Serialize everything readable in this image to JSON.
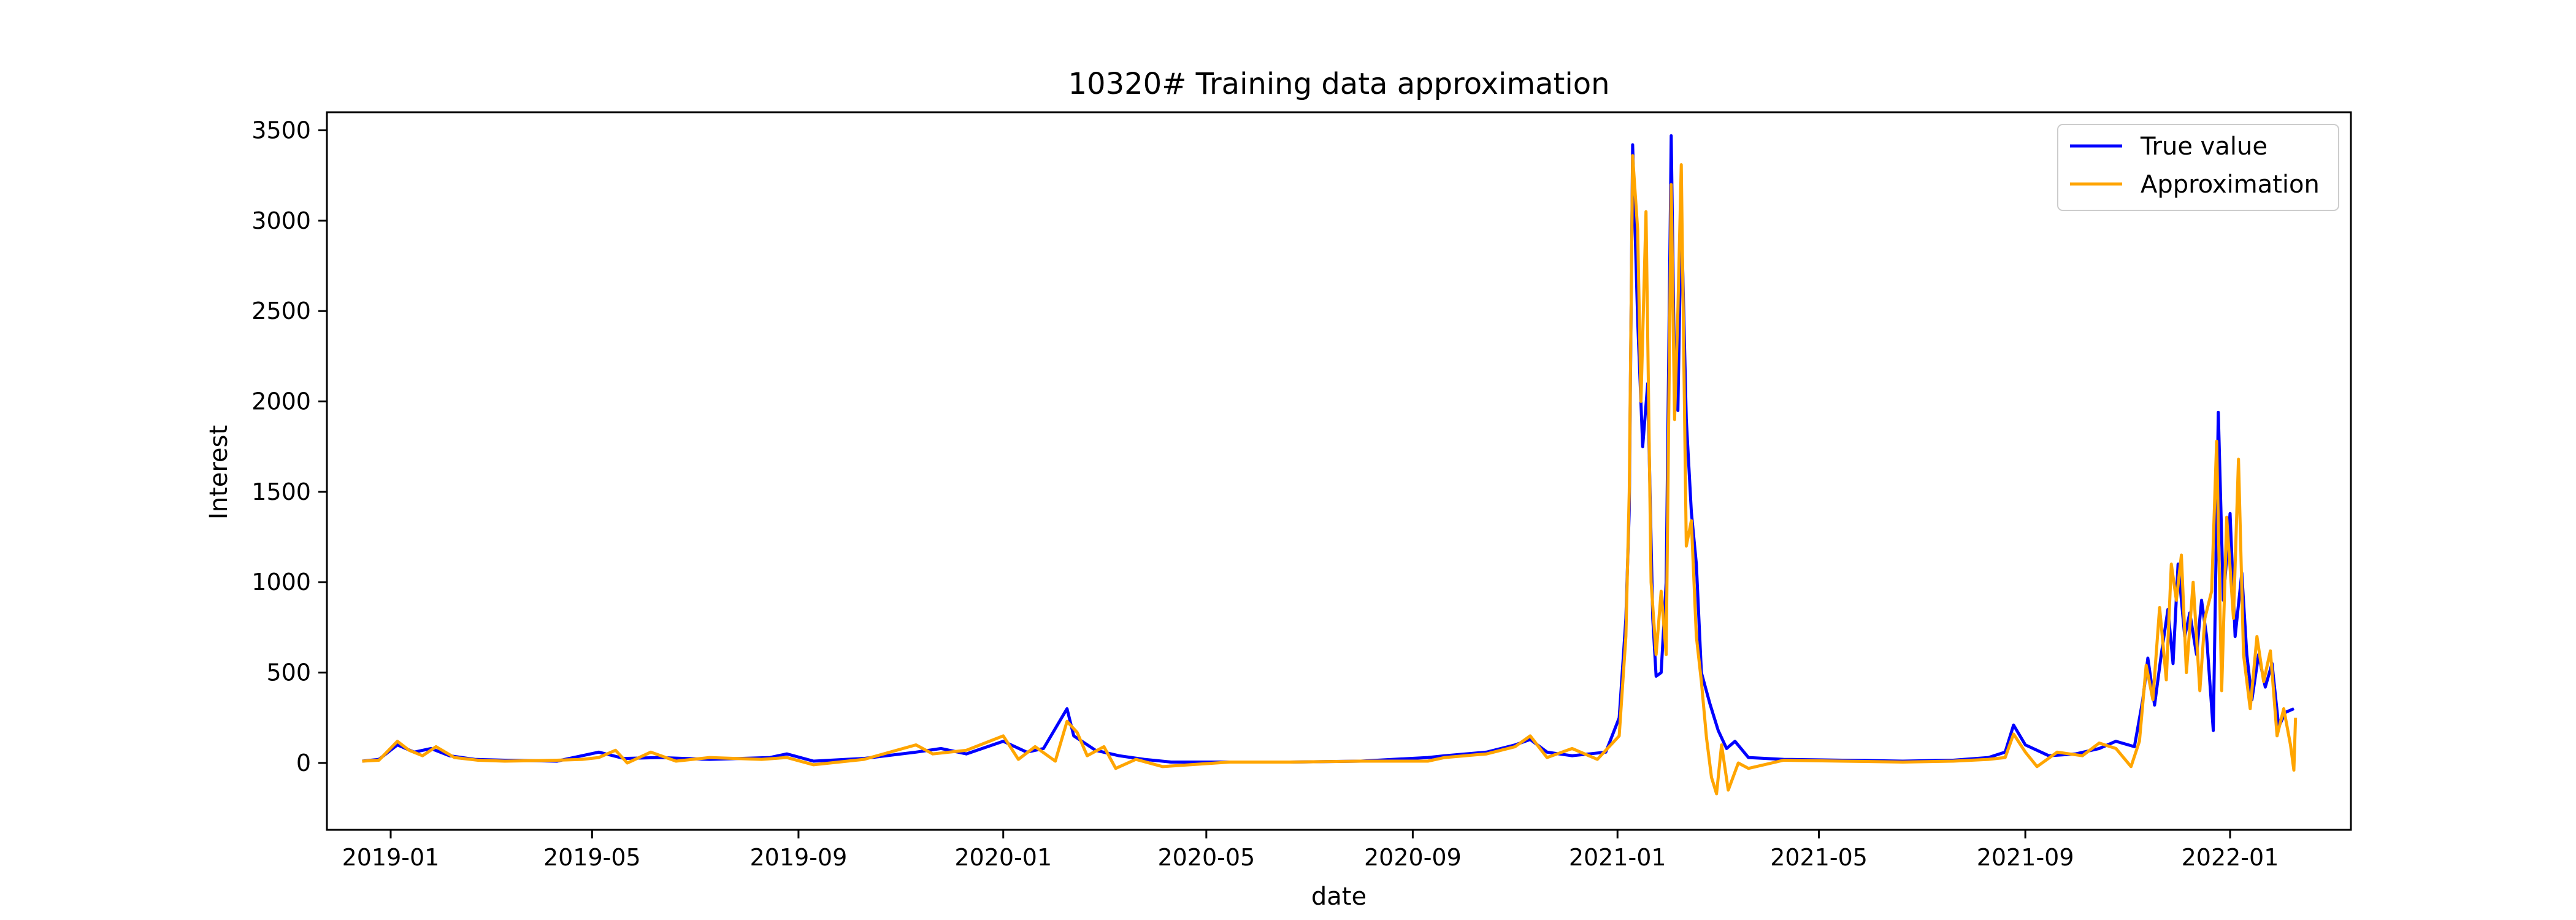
{
  "chart_data": {
    "type": "line",
    "title": "10320# Training data approximation",
    "xlabel": "date",
    "ylabel": "Interest",
    "xlim": [
      "2018-11-24",
      "2022-03-14"
    ],
    "ylim": [
      -370,
      3600
    ],
    "x_ticks": [
      "2019-01",
      "2019-05",
      "2019-09",
      "2020-01",
      "2020-05",
      "2020-09",
      "2021-01",
      "2021-05",
      "2021-09",
      "2022-01"
    ],
    "y_ticks": [
      0,
      500,
      1000,
      1500,
      2000,
      2500,
      3000,
      3500
    ],
    "legend_position": "top-right",
    "grid": false,
    "series": [
      {
        "name": "True value",
        "color": "#0000ff",
        "points": [
          [
            "2018-12-15",
            10
          ],
          [
            "2018-12-25",
            20
          ],
          [
            "2019-01-05",
            100
          ],
          [
            "2019-01-15",
            60
          ],
          [
            "2019-01-25",
            80
          ],
          [
            "2019-02-05",
            40
          ],
          [
            "2019-02-20",
            20
          ],
          [
            "2019-03-10",
            15
          ],
          [
            "2019-04-10",
            10
          ],
          [
            "2019-04-25",
            40
          ],
          [
            "2019-05-05",
            60
          ],
          [
            "2019-05-20",
            25
          ],
          [
            "2019-06-10",
            30
          ],
          [
            "2019-07-10",
            20
          ],
          [
            "2019-08-15",
            30
          ],
          [
            "2019-08-25",
            50
          ],
          [
            "2019-09-10",
            10
          ],
          [
            "2019-10-10",
            25
          ],
          [
            "2019-11-10",
            60
          ],
          [
            "2019-11-25",
            80
          ],
          [
            "2019-12-10",
            50
          ],
          [
            "2020-01-01",
            120
          ],
          [
            "2020-01-15",
            60
          ],
          [
            "2020-01-25",
            80
          ],
          [
            "2020-02-08",
            300
          ],
          [
            "2020-02-12",
            150
          ],
          [
            "2020-02-25",
            70
          ],
          [
            "2020-03-10",
            40
          ],
          [
            "2020-03-25",
            20
          ],
          [
            "2020-04-10",
            5
          ],
          [
            "2020-05-15",
            5
          ],
          [
            "2020-06-20",
            5
          ],
          [
            "2020-08-01",
            10
          ],
          [
            "2020-09-10",
            30
          ],
          [
            "2020-09-20",
            40
          ],
          [
            "2020-10-15",
            60
          ],
          [
            "2020-11-01",
            100
          ],
          [
            "2020-11-10",
            130
          ],
          [
            "2020-11-20",
            60
          ],
          [
            "2020-12-05",
            40
          ],
          [
            "2020-12-25",
            60
          ],
          [
            "2021-01-02",
            250
          ],
          [
            "2021-01-06",
            800
          ],
          [
            "2021-01-08",
            1400
          ],
          [
            "2021-01-10",
            3420
          ],
          [
            "2021-01-13",
            2450
          ],
          [
            "2021-01-16",
            1750
          ],
          [
            "2021-01-19",
            2100
          ],
          [
            "2021-01-22",
            800
          ],
          [
            "2021-01-24",
            480
          ],
          [
            "2021-01-27",
            500
          ],
          [
            "2021-01-30",
            1000
          ],
          [
            "2021-02-02",
            3470
          ],
          [
            "2021-02-04",
            2100
          ],
          [
            "2021-02-06",
            1950
          ],
          [
            "2021-02-08",
            3060
          ],
          [
            "2021-02-11",
            1900
          ],
          [
            "2021-02-14",
            1390
          ],
          [
            "2021-02-17",
            1100
          ],
          [
            "2021-02-20",
            500
          ],
          [
            "2021-02-25",
            330
          ],
          [
            "2021-03-02",
            180
          ],
          [
            "2021-03-07",
            80
          ],
          [
            "2021-03-12",
            120
          ],
          [
            "2021-03-20",
            30
          ],
          [
            "2021-04-10",
            20
          ],
          [
            "2021-05-15",
            15
          ],
          [
            "2021-06-20",
            10
          ],
          [
            "2021-07-20",
            15
          ],
          [
            "2021-08-10",
            30
          ],
          [
            "2021-08-20",
            60
          ],
          [
            "2021-08-25",
            210
          ],
          [
            "2021-09-01",
            100
          ],
          [
            "2021-09-15",
            40
          ],
          [
            "2021-10-01",
            50
          ],
          [
            "2021-10-15",
            80
          ],
          [
            "2021-10-25",
            120
          ],
          [
            "2021-11-05",
            90
          ],
          [
            "2021-11-10",
            350
          ],
          [
            "2021-11-13",
            580
          ],
          [
            "2021-11-17",
            320
          ],
          [
            "2021-11-21",
            600
          ],
          [
            "2021-11-25",
            850
          ],
          [
            "2021-11-28",
            550
          ],
          [
            "2021-12-01",
            1100
          ],
          [
            "2021-12-05",
            700
          ],
          [
            "2021-12-08",
            830
          ],
          [
            "2021-12-12",
            600
          ],
          [
            "2021-12-15",
            900
          ],
          [
            "2021-12-18",
            700
          ],
          [
            "2021-12-22",
            180
          ],
          [
            "2021-12-25",
            1940
          ],
          [
            "2021-12-28",
            900
          ],
          [
            "2022-01-01",
            1380
          ],
          [
            "2022-01-04",
            700
          ],
          [
            "2022-01-08",
            1050
          ],
          [
            "2022-01-11",
            600
          ],
          [
            "2022-01-14",
            350
          ],
          [
            "2022-01-18",
            600
          ],
          [
            "2022-01-22",
            420
          ],
          [
            "2022-01-26",
            550
          ],
          [
            "2022-01-30",
            200
          ],
          [
            "2022-02-03",
            280
          ],
          [
            "2022-02-08",
            300
          ]
        ]
      },
      {
        "name": "Approximation",
        "color": "#ffa500",
        "points": [
          [
            "2018-12-15",
            10
          ],
          [
            "2018-12-25",
            15
          ],
          [
            "2019-01-05",
            120
          ],
          [
            "2019-01-12",
            70
          ],
          [
            "2019-01-20",
            40
          ],
          [
            "2019-01-28",
            90
          ],
          [
            "2019-02-08",
            30
          ],
          [
            "2019-02-22",
            15
          ],
          [
            "2019-03-10",
            10
          ],
          [
            "2019-04-10",
            15
          ],
          [
            "2019-04-25",
            20
          ],
          [
            "2019-05-05",
            30
          ],
          [
            "2019-05-15",
            70
          ],
          [
            "2019-05-22",
            0
          ],
          [
            "2019-06-05",
            60
          ],
          [
            "2019-06-20",
            10
          ],
          [
            "2019-07-10",
            30
          ],
          [
            "2019-08-10",
            20
          ],
          [
            "2019-08-25",
            30
          ],
          [
            "2019-09-10",
            -10
          ],
          [
            "2019-10-10",
            20
          ],
          [
            "2019-11-10",
            100
          ],
          [
            "2019-11-20",
            50
          ],
          [
            "2019-12-10",
            70
          ],
          [
            "2020-01-01",
            150
          ],
          [
            "2020-01-10",
            20
          ],
          [
            "2020-01-20",
            90
          ],
          [
            "2020-02-01",
            10
          ],
          [
            "2020-02-08",
            230
          ],
          [
            "2020-02-14",
            170
          ],
          [
            "2020-02-20",
            40
          ],
          [
            "2020-03-01",
            90
          ],
          [
            "2020-03-08",
            -30
          ],
          [
            "2020-03-20",
            20
          ],
          [
            "2020-04-05",
            -20
          ],
          [
            "2020-05-15",
            5
          ],
          [
            "2020-06-20",
            5
          ],
          [
            "2020-08-01",
            10
          ],
          [
            "2020-09-10",
            10
          ],
          [
            "2020-09-20",
            30
          ],
          [
            "2020-10-15",
            50
          ],
          [
            "2020-11-01",
            90
          ],
          [
            "2020-11-10",
            150
          ],
          [
            "2020-11-20",
            30
          ],
          [
            "2020-12-05",
            80
          ],
          [
            "2020-12-20",
            20
          ],
          [
            "2021-01-02",
            150
          ],
          [
            "2021-01-06",
            700
          ],
          [
            "2021-01-08",
            1500
          ],
          [
            "2021-01-10",
            3360
          ],
          [
            "2021-01-13",
            2950
          ],
          [
            "2021-01-15",
            2000
          ],
          [
            "2021-01-18",
            3050
          ],
          [
            "2021-01-21",
            1000
          ],
          [
            "2021-01-24",
            600
          ],
          [
            "2021-01-27",
            950
          ],
          [
            "2021-01-30",
            600
          ],
          [
            "2021-02-02",
            3200
          ],
          [
            "2021-02-04",
            1900
          ],
          [
            "2021-02-06",
            2500
          ],
          [
            "2021-02-08",
            3310
          ],
          [
            "2021-02-11",
            1200
          ],
          [
            "2021-02-14",
            1340
          ],
          [
            "2021-02-17",
            700
          ],
          [
            "2021-02-20",
            450
          ],
          [
            "2021-02-23",
            140
          ],
          [
            "2021-02-26",
            -80
          ],
          [
            "2021-03-01",
            -170
          ],
          [
            "2021-03-04",
            100
          ],
          [
            "2021-03-08",
            -150
          ],
          [
            "2021-03-14",
            0
          ],
          [
            "2021-03-20",
            -30
          ],
          [
            "2021-04-10",
            15
          ],
          [
            "2021-05-15",
            10
          ],
          [
            "2021-06-20",
            5
          ],
          [
            "2021-07-20",
            10
          ],
          [
            "2021-08-10",
            20
          ],
          [
            "2021-08-20",
            30
          ],
          [
            "2021-08-25",
            160
          ],
          [
            "2021-09-01",
            60
          ],
          [
            "2021-09-08",
            -20
          ],
          [
            "2021-09-20",
            60
          ],
          [
            "2021-10-05",
            40
          ],
          [
            "2021-10-15",
            110
          ],
          [
            "2021-10-25",
            80
          ],
          [
            "2021-11-03",
            -20
          ],
          [
            "2021-11-08",
            120
          ],
          [
            "2021-11-12",
            540
          ],
          [
            "2021-11-16",
            350
          ],
          [
            "2021-11-20",
            860
          ],
          [
            "2021-11-24",
            460
          ],
          [
            "2021-11-27",
            1100
          ],
          [
            "2021-11-30",
            900
          ],
          [
            "2021-12-03",
            1150
          ],
          [
            "2021-12-06",
            500
          ],
          [
            "2021-12-10",
            1000
          ],
          [
            "2021-12-14",
            400
          ],
          [
            "2021-12-17",
            800
          ],
          [
            "2021-12-21",
            950
          ],
          [
            "2021-12-24",
            1780
          ],
          [
            "2021-12-27",
            400
          ],
          [
            "2021-12-30",
            1360
          ],
          [
            "2022-01-03",
            800
          ],
          [
            "2022-01-06",
            1680
          ],
          [
            "2022-01-09",
            600
          ],
          [
            "2022-01-13",
            300
          ],
          [
            "2022-01-17",
            700
          ],
          [
            "2022-01-21",
            450
          ],
          [
            "2022-01-25",
            620
          ],
          [
            "2022-01-29",
            150
          ],
          [
            "2022-02-02",
            300
          ],
          [
            "2022-02-06",
            100
          ],
          [
            "2022-02-08",
            -40
          ],
          [
            "2022-02-09",
            250
          ]
        ]
      }
    ]
  }
}
